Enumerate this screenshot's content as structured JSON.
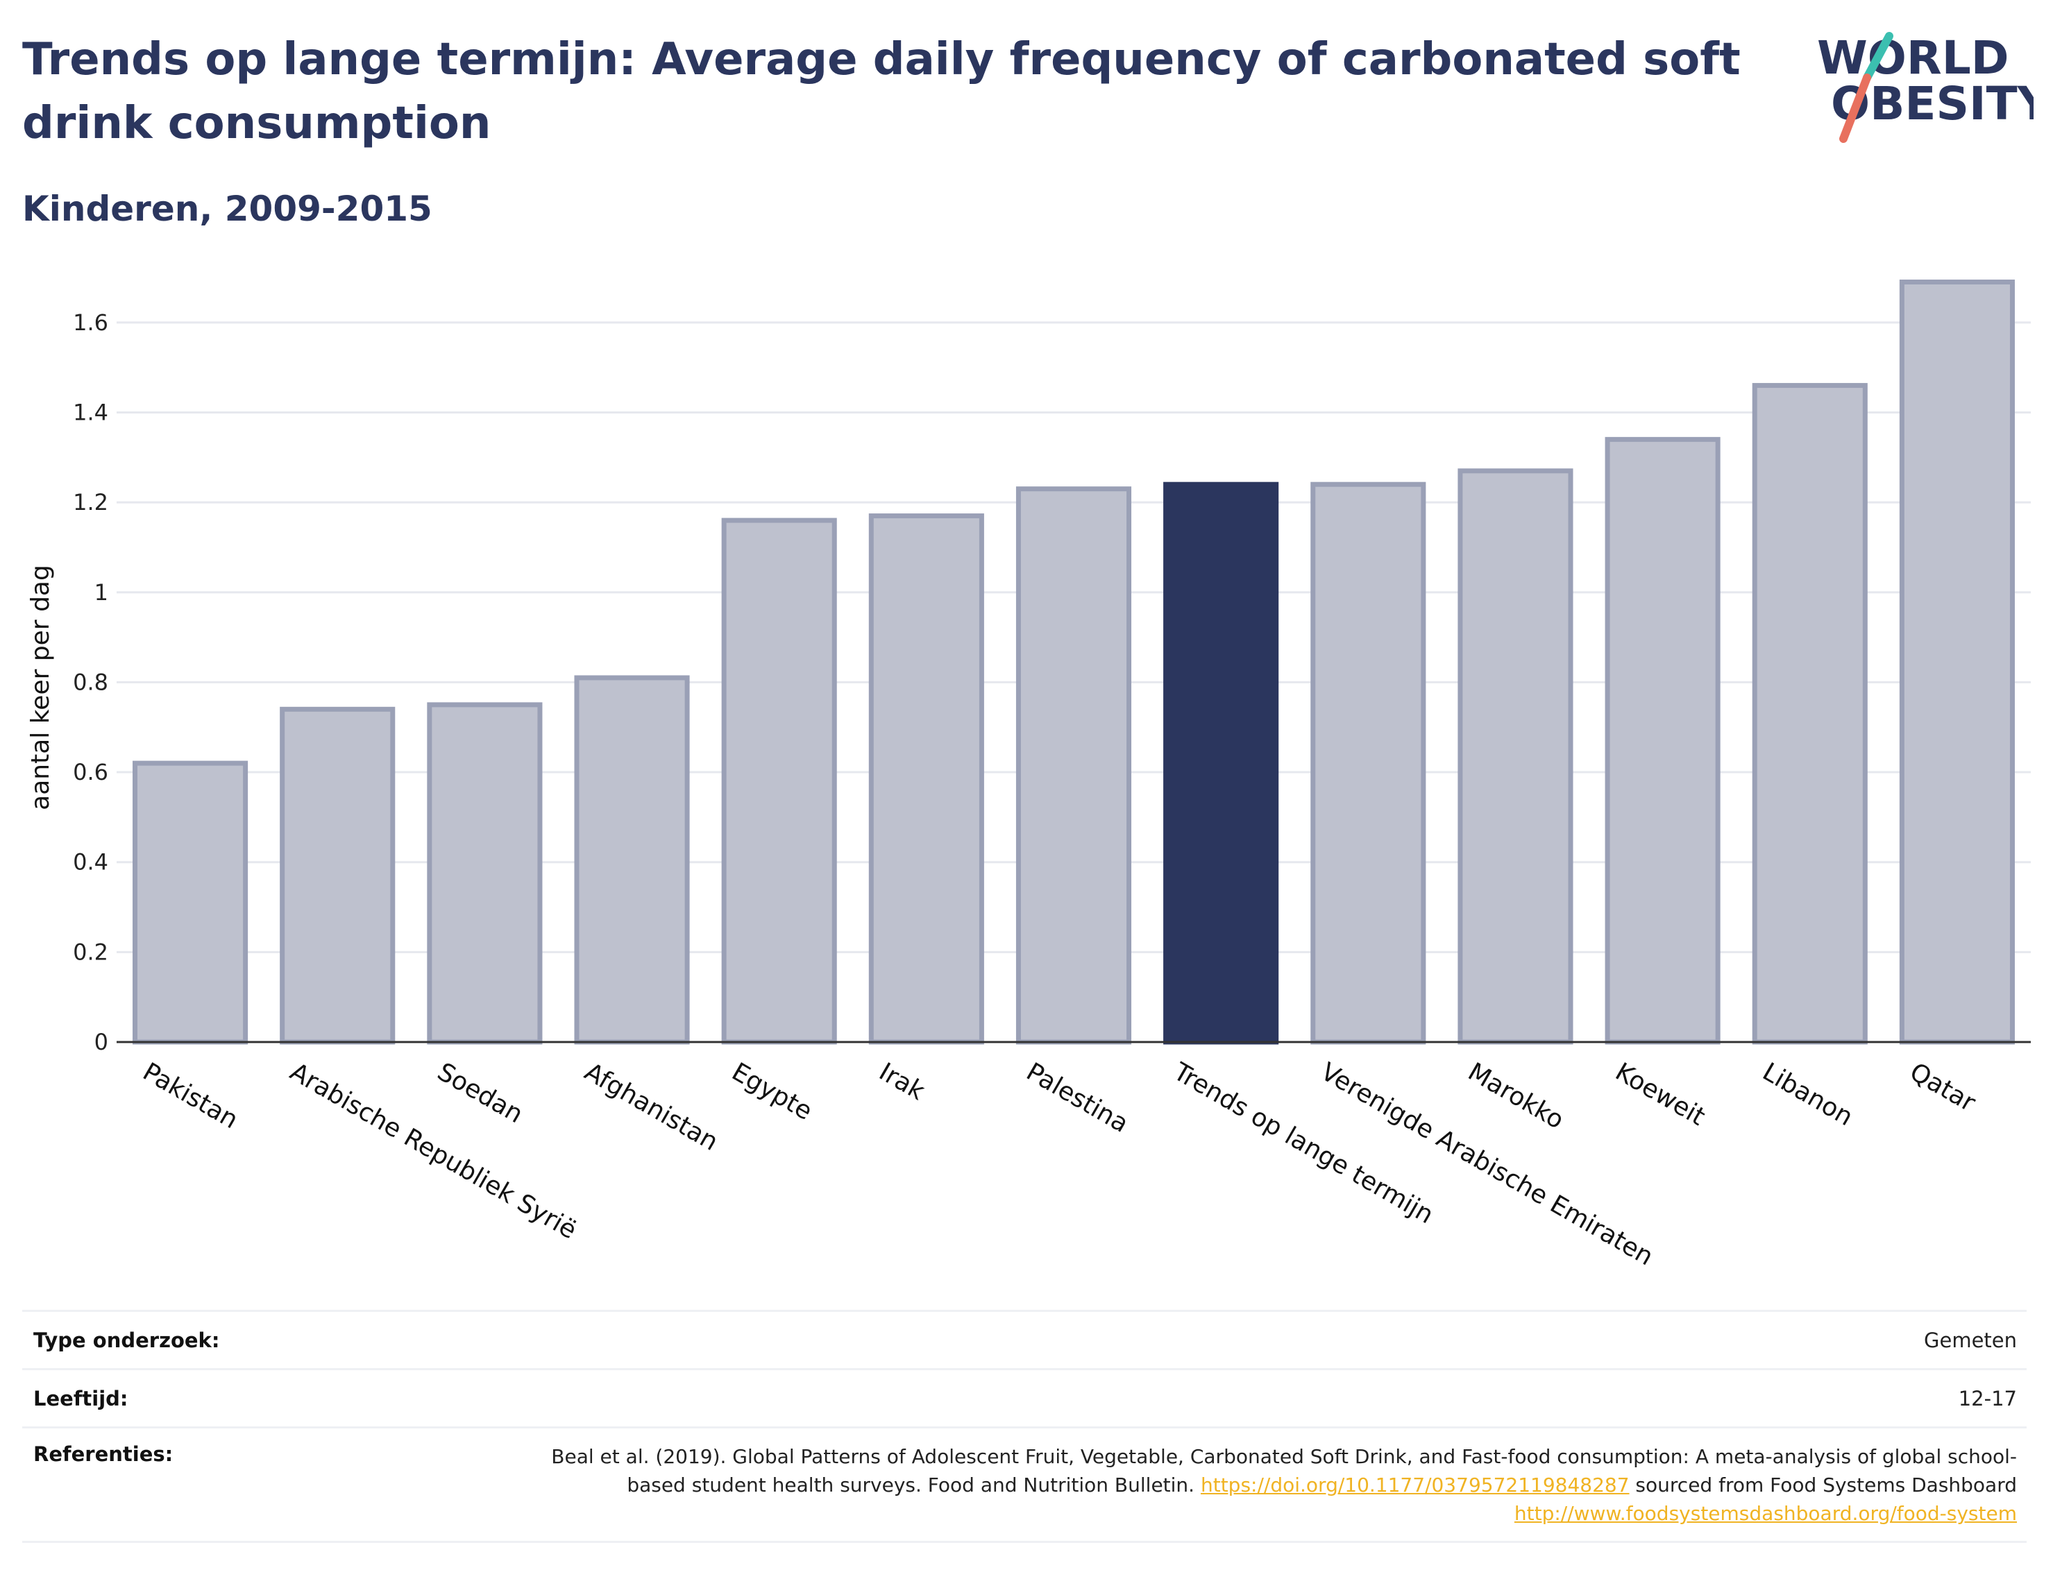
{
  "header": {
    "title": "Trends op lange termijn: Average daily frequency of carbonated soft drink consumption",
    "subtitle": "Kinderen, 2009-2015"
  },
  "logo": {
    "line1": "WORLD",
    "line2": "OBESITY"
  },
  "colors": {
    "primary": "#2b365e",
    "bar_fill": "#bec1ce",
    "bar_stroke": "#9aa0b6",
    "highlight": "#2b365e",
    "logo_teal": "#3bbfb0",
    "logo_coral": "#e8705e",
    "link": "#f0b323"
  },
  "chart_data": {
    "type": "bar",
    "categories": [
      "Pakistan",
      "Arabische Republiek Syrië",
      "Soedan",
      "Afghanistan",
      "Egypte",
      "Irak",
      "Palestina",
      "Trends op lange termijn",
      "Verenigde Arabische Emiraten",
      "Marokko",
      "Koeweit",
      "Libanon",
      "Qatar"
    ],
    "values": [
      0.62,
      0.74,
      0.75,
      0.81,
      1.16,
      1.17,
      1.23,
      1.24,
      1.24,
      1.27,
      1.34,
      1.46,
      1.69
    ],
    "highlight_index": 7,
    "ylabel": "aantal keer per dag",
    "xlabel": "",
    "ylim": [
      0,
      1.7
    ],
    "yticks": [
      0,
      0.2,
      0.4,
      0.6,
      0.8,
      1,
      1.2,
      1.4,
      1.6
    ],
    "ytick_labels": [
      "0",
      "0.2",
      "0.4",
      "0.6",
      "0.8",
      "1",
      "1.2",
      "1.4",
      "1.6"
    ],
    "grid": true
  },
  "meta": {
    "type_label": "Type onderzoek:",
    "type_value": "Gemeten",
    "age_label": "Leeftijd:",
    "age_value": "12-17",
    "ref_label": "Referenties:",
    "ref_text_1": "Beal et al. (2019). Global Patterns of Adolescent Fruit, Vegetable, Carbonated Soft Drink, and Fast-food consumption: A meta-analysis of global school-based student health surveys. Food and Nutrition Bulletin. ",
    "ref_link_1": "https://doi.org/10.1177/0379572119848287",
    "ref_text_2": " sourced from Food Systems Dashboard ",
    "ref_link_2": "http://www.foodsystemsdashboard.org/food-system"
  }
}
